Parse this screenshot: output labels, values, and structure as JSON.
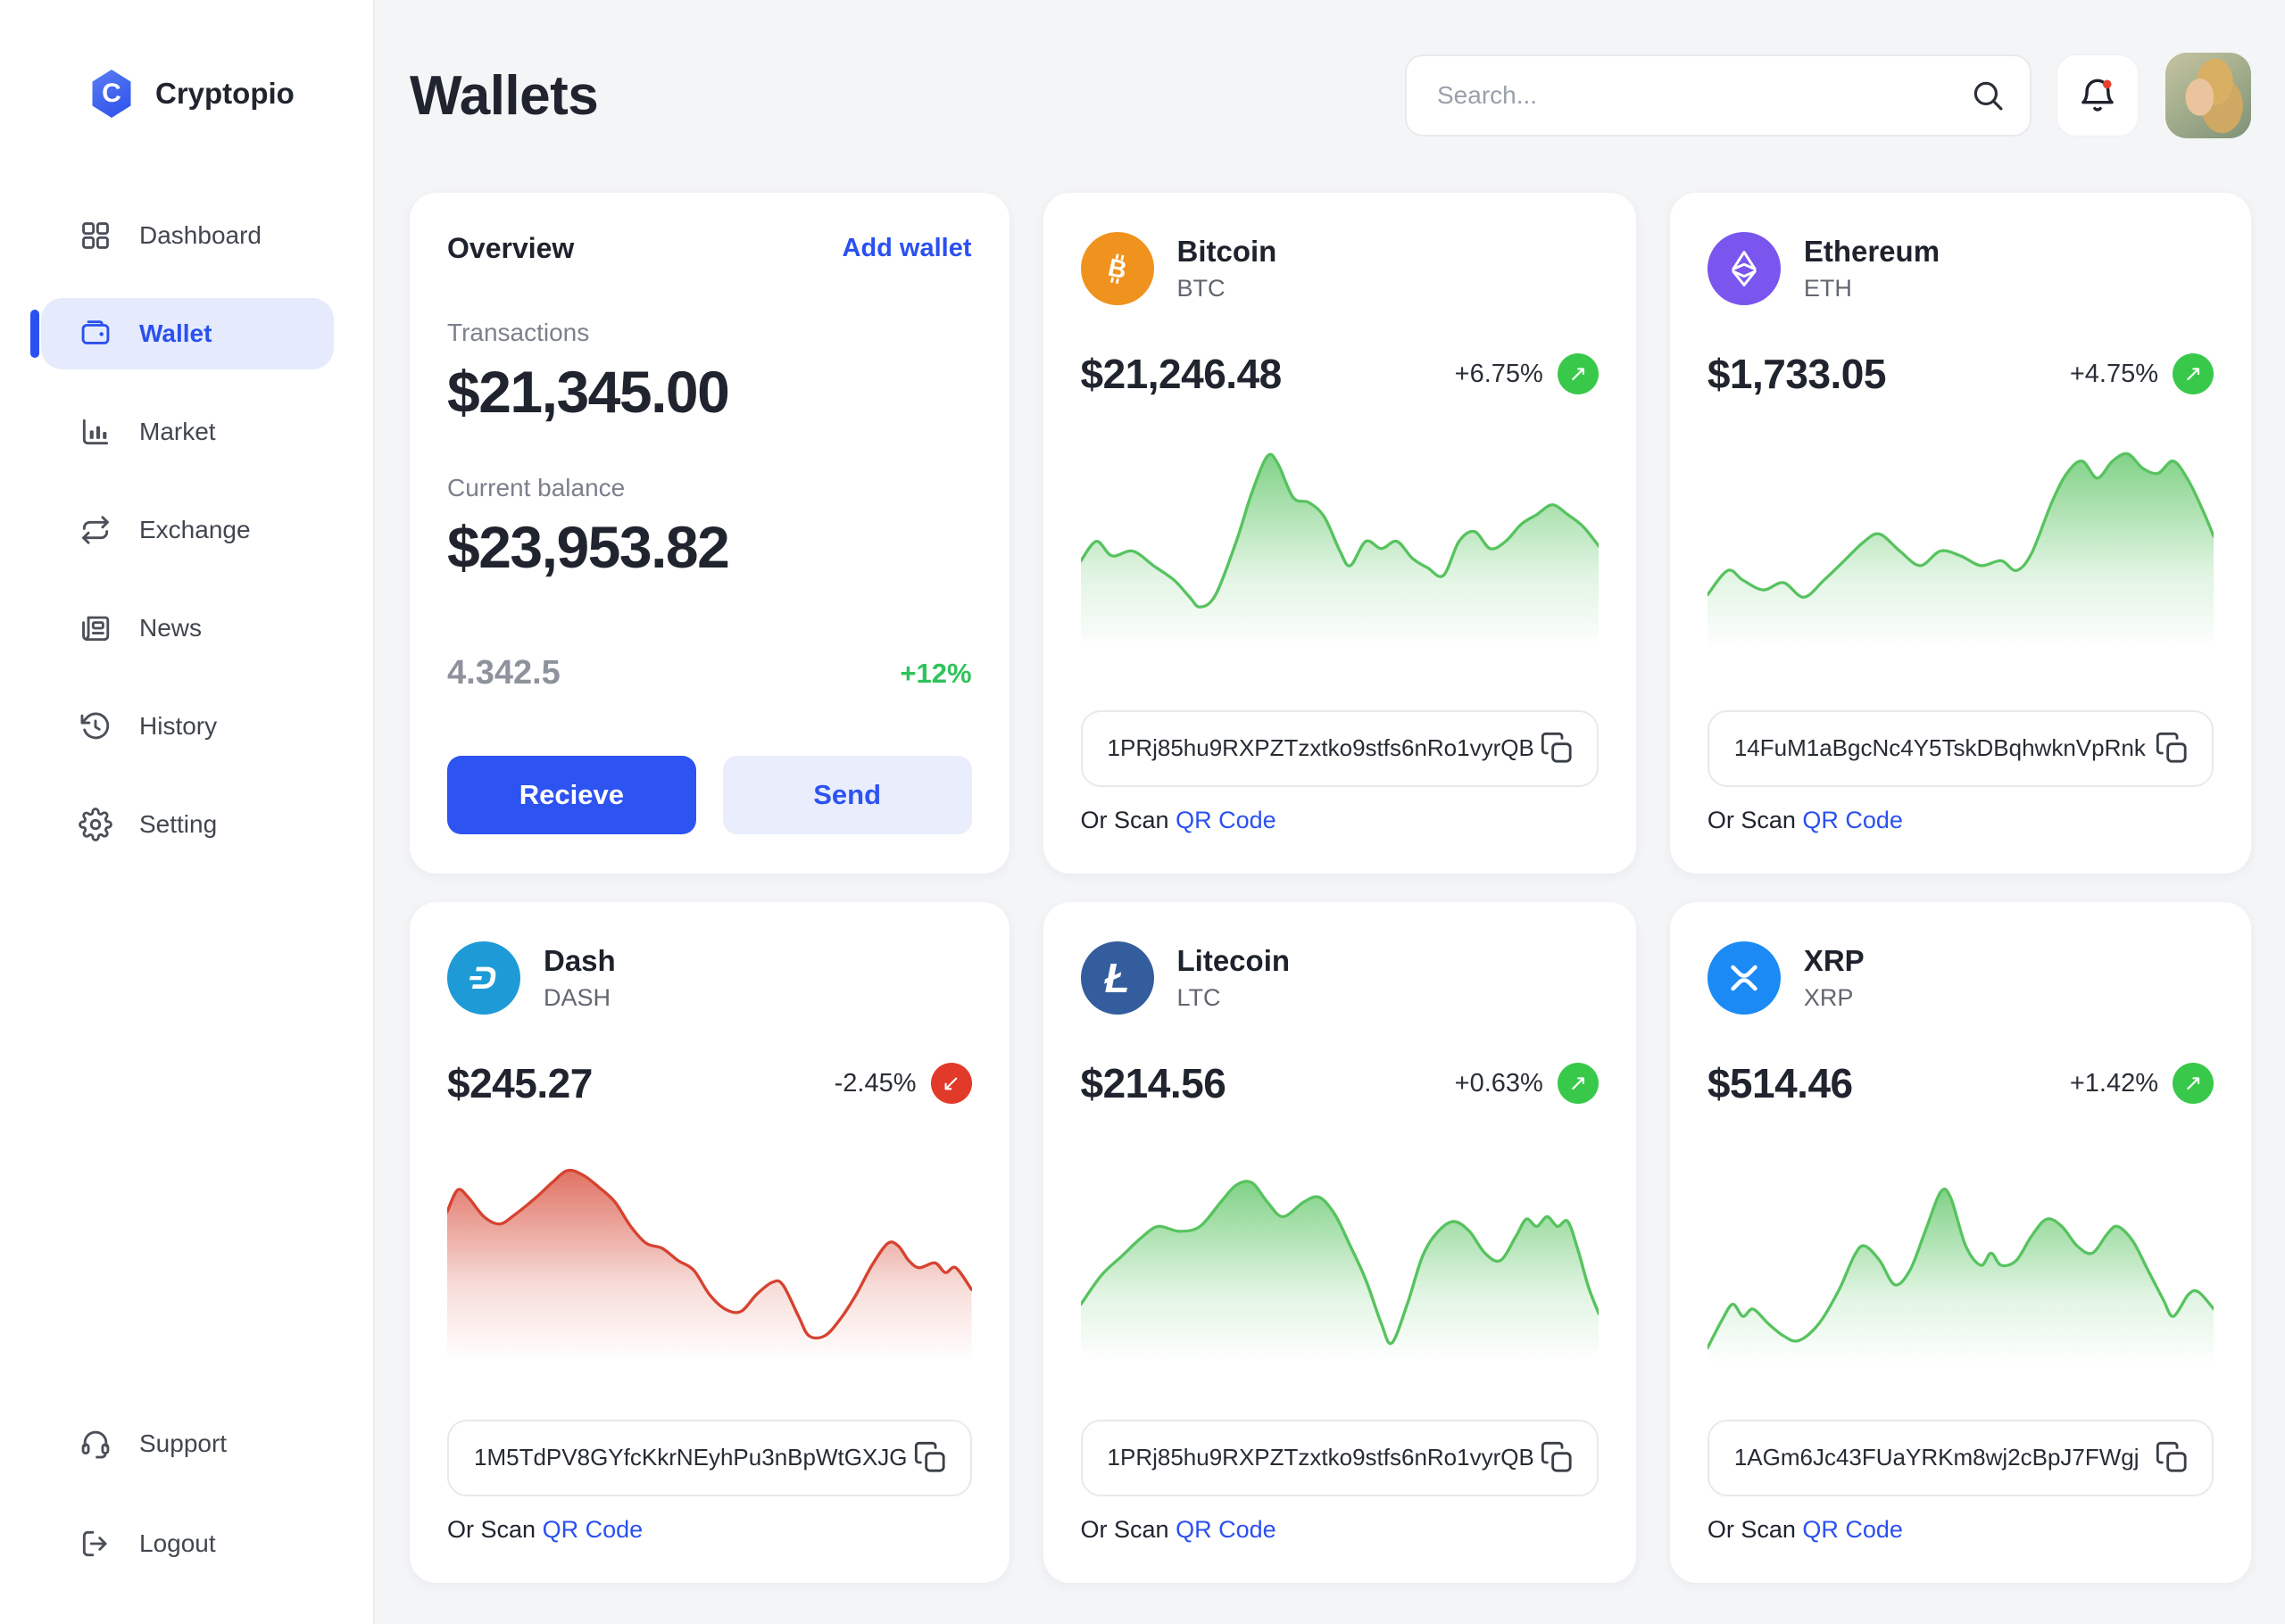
{
  "brand": {
    "name": "Cryptopio",
    "logo_icon": "hexagon-c-icon",
    "logo_letter": "C",
    "logo_color": "#2b4fe8"
  },
  "sidebar": {
    "items": [
      {
        "label": "Dashboard",
        "icon": "grid-icon",
        "active": false
      },
      {
        "label": "Wallet",
        "icon": "wallet-icon",
        "active": true
      },
      {
        "label": "Market",
        "icon": "bar-chart-icon",
        "active": false
      },
      {
        "label": "Exchange",
        "icon": "swap-arrows-icon",
        "active": false
      },
      {
        "label": "News",
        "icon": "newspaper-icon",
        "active": false
      },
      {
        "label": "History",
        "icon": "history-clock-icon",
        "active": false
      },
      {
        "label": "Setting",
        "icon": "gear-icon",
        "active": false
      }
    ],
    "footer_items": [
      {
        "label": "Support",
        "icon": "headset-icon"
      },
      {
        "label": "Logout",
        "icon": "logout-icon"
      }
    ]
  },
  "header": {
    "title": "Wallets",
    "search": {
      "placeholder": "Search...",
      "icon": "search-icon"
    },
    "notification": {
      "icon": "bell-icon",
      "unread_dot": true,
      "dot_color": "#e8402f"
    },
    "avatar": "user-photo"
  },
  "labels": {
    "or_scan": "Or Scan",
    "qr_code": "QR Code"
  },
  "overview": {
    "title": "Overview",
    "add_wallet_label": "Add wallet",
    "transactions_label": "Transactions",
    "transactions_value": "$21,345.00",
    "balance_label": "Current balance",
    "balance_value": "$23,953.82",
    "holdings": "4.342.5",
    "change": "+12%",
    "receive_label": "Recieve",
    "send_label": "Send"
  },
  "coins": [
    {
      "name": "Bitcoin",
      "ticker": "BTC",
      "icon": "bitcoin-b-icon",
      "color": "#f0921e",
      "price": "$21,246.48",
      "change": "+6.75%",
      "direction": "up",
      "badge_color": "#38c94a",
      "badge_icon": "↗",
      "address": "1PRj85hu9RXPZTzxtko9stfs6nRo1vyrQB",
      "spark": {
        "color": "#57c35f",
        "points": [
          [
            0,
            0.52
          ],
          [
            3,
            0.6
          ],
          [
            6,
            0.54
          ],
          [
            10,
            0.56
          ],
          [
            14,
            0.5
          ],
          [
            18,
            0.44
          ],
          [
            21,
            0.37
          ],
          [
            23,
            0.33
          ],
          [
            26,
            0.38
          ],
          [
            30,
            0.6
          ],
          [
            33,
            0.8
          ],
          [
            36,
            0.95
          ],
          [
            38,
            0.92
          ],
          [
            41,
            0.78
          ],
          [
            44,
            0.76
          ],
          [
            47,
            0.7
          ],
          [
            50,
            0.56
          ],
          [
            52,
            0.5
          ],
          [
            55,
            0.6
          ],
          [
            58,
            0.57
          ],
          [
            61,
            0.6
          ],
          [
            64,
            0.53
          ],
          [
            67,
            0.49
          ],
          [
            70,
            0.46
          ],
          [
            73,
            0.6
          ],
          [
            76,
            0.64
          ],
          [
            79,
            0.57
          ],
          [
            82,
            0.6
          ],
          [
            85,
            0.67
          ],
          [
            88,
            0.71
          ],
          [
            91,
            0.75
          ],
          [
            94,
            0.71
          ],
          [
            97,
            0.66
          ],
          [
            100,
            0.58
          ]
        ]
      }
    },
    {
      "name": "Ethereum",
      "ticker": "ETH",
      "icon": "ethereum-diamond-icon",
      "color": "#7a55ee",
      "price": "$1,733.05",
      "change": "+4.75%",
      "direction": "up",
      "badge_color": "#38c94a",
      "badge_icon": "↗",
      "address": "14FuM1aBgcNc4Y5TskDBqhwknVpRnk",
      "spark": {
        "color": "#57c35f",
        "points": [
          [
            0,
            0.38
          ],
          [
            4,
            0.48
          ],
          [
            7,
            0.44
          ],
          [
            11,
            0.4
          ],
          [
            15,
            0.43
          ],
          [
            19,
            0.37
          ],
          [
            23,
            0.44
          ],
          [
            27,
            0.52
          ],
          [
            31,
            0.6
          ],
          [
            34,
            0.63
          ],
          [
            38,
            0.56
          ],
          [
            42,
            0.5
          ],
          [
            46,
            0.56
          ],
          [
            50,
            0.54
          ],
          [
            54,
            0.5
          ],
          [
            58,
            0.52
          ],
          [
            61,
            0.48
          ],
          [
            64,
            0.55
          ],
          [
            68,
            0.76
          ],
          [
            71,
            0.88
          ],
          [
            74,
            0.93
          ],
          [
            77,
            0.86
          ],
          [
            80,
            0.93
          ],
          [
            83,
            0.96
          ],
          [
            86,
            0.9
          ],
          [
            89,
            0.88
          ],
          [
            92,
            0.93
          ],
          [
            95,
            0.85
          ],
          [
            98,
            0.72
          ],
          [
            100,
            0.62
          ]
        ]
      }
    },
    {
      "name": "Dash",
      "ticker": "DASH",
      "icon": "dash-d-icon",
      "color": "#1e9bd7",
      "price": "$245.27",
      "change": "-2.45%",
      "direction": "down",
      "badge_color": "#e23a2a",
      "badge_icon": "↙",
      "address": "1M5TdPV8GYfcKkrNEyhPu3nBpWtGXJG",
      "spark": {
        "color": "#d64330",
        "points": [
          [
            0,
            0.76
          ],
          [
            2,
            0.85
          ],
          [
            4,
            0.82
          ],
          [
            7,
            0.74
          ],
          [
            10,
            0.71
          ],
          [
            13,
            0.75
          ],
          [
            17,
            0.82
          ],
          [
            20,
            0.88
          ],
          [
            23,
            0.93
          ],
          [
            26,
            0.91
          ],
          [
            29,
            0.86
          ],
          [
            32,
            0.8
          ],
          [
            35,
            0.7
          ],
          [
            38,
            0.63
          ],
          [
            41,
            0.61
          ],
          [
            44,
            0.56
          ],
          [
            47,
            0.52
          ],
          [
            50,
            0.42
          ],
          [
            53,
            0.36
          ],
          [
            56,
            0.35
          ],
          [
            59,
            0.42
          ],
          [
            62,
            0.47
          ],
          [
            64,
            0.46
          ],
          [
            67,
            0.33
          ],
          [
            69,
            0.25
          ],
          [
            72,
            0.25
          ],
          [
            75,
            0.32
          ],
          [
            78,
            0.42
          ],
          [
            81,
            0.54
          ],
          [
            84,
            0.63
          ],
          [
            86,
            0.62
          ],
          [
            88,
            0.56
          ],
          [
            90,
            0.53
          ],
          [
            93,
            0.55
          ],
          [
            95,
            0.51
          ],
          [
            97,
            0.53
          ],
          [
            100,
            0.44
          ]
        ]
      }
    },
    {
      "name": "Litecoin",
      "ticker": "LTC",
      "icon": "litecoin-l-icon",
      "color": "#345d9d",
      "price": "$214.56",
      "change": "+0.63%",
      "direction": "up",
      "badge_color": "#38c94a",
      "badge_icon": "↗",
      "address": "1PRj85hu9RXPZTzxtko9stfs6nRo1vyrQB",
      "spark": {
        "color": "#57c35f",
        "points": [
          [
            0,
            0.38
          ],
          [
            4,
            0.5
          ],
          [
            8,
            0.58
          ],
          [
            12,
            0.66
          ],
          [
            15,
            0.7
          ],
          [
            19,
            0.68
          ],
          [
            23,
            0.7
          ],
          [
            27,
            0.8
          ],
          [
            30,
            0.87
          ],
          [
            33,
            0.88
          ],
          [
            36,
            0.8
          ],
          [
            39,
            0.74
          ],
          [
            43,
            0.8
          ],
          [
            46,
            0.82
          ],
          [
            49,
            0.75
          ],
          [
            52,
            0.62
          ],
          [
            55,
            0.48
          ],
          [
            58,
            0.3
          ],
          [
            60,
            0.22
          ],
          [
            63,
            0.38
          ],
          [
            66,
            0.58
          ],
          [
            69,
            0.68
          ],
          [
            72,
            0.72
          ],
          [
            75,
            0.68
          ],
          [
            78,
            0.59
          ],
          [
            81,
            0.56
          ],
          [
            84,
            0.66
          ],
          [
            86,
            0.73
          ],
          [
            88,
            0.7
          ],
          [
            90,
            0.74
          ],
          [
            92,
            0.7
          ],
          [
            94,
            0.72
          ],
          [
            96,
            0.6
          ],
          [
            98,
            0.45
          ],
          [
            100,
            0.34
          ]
        ]
      }
    },
    {
      "name": "XRP",
      "ticker": "XRP",
      "icon": "xrp-x-icon",
      "color": "#1b8af5",
      "price": "$514.46",
      "change": "+1.42%",
      "direction": "up",
      "badge_color": "#38c94a",
      "badge_icon": "↗",
      "address": "1AGm6Jc43FUaYRKm8wj2cBpJ7FWgj",
      "spark": {
        "color": "#57c35f",
        "points": [
          [
            0,
            0.2
          ],
          [
            3,
            0.32
          ],
          [
            5,
            0.38
          ],
          [
            7,
            0.33
          ],
          [
            9,
            0.36
          ],
          [
            12,
            0.3
          ],
          [
            15,
            0.25
          ],
          [
            18,
            0.23
          ],
          [
            22,
            0.3
          ],
          [
            26,
            0.44
          ],
          [
            29,
            0.58
          ],
          [
            31,
            0.62
          ],
          [
            34,
            0.56
          ],
          [
            37,
            0.46
          ],
          [
            40,
            0.52
          ],
          [
            43,
            0.68
          ],
          [
            46,
            0.84
          ],
          [
            48,
            0.82
          ],
          [
            51,
            0.62
          ],
          [
            54,
            0.54
          ],
          [
            56,
            0.59
          ],
          [
            58,
            0.54
          ],
          [
            61,
            0.56
          ],
          [
            64,
            0.66
          ],
          [
            67,
            0.73
          ],
          [
            70,
            0.7
          ],
          [
            73,
            0.62
          ],
          [
            76,
            0.59
          ],
          [
            79,
            0.67
          ],
          [
            81,
            0.7
          ],
          [
            84,
            0.64
          ],
          [
            87,
            0.52
          ],
          [
            90,
            0.4
          ],
          [
            92,
            0.33
          ],
          [
            95,
            0.42
          ],
          [
            97,
            0.43
          ],
          [
            100,
            0.36
          ]
        ]
      }
    }
  ],
  "colors": {
    "accent_blue": "#2b50f0",
    "positive_green": "#2fc35b",
    "negative_red": "#e23a2a",
    "page_bg": "#f4f5f7",
    "card_bg": "#ffffff"
  }
}
